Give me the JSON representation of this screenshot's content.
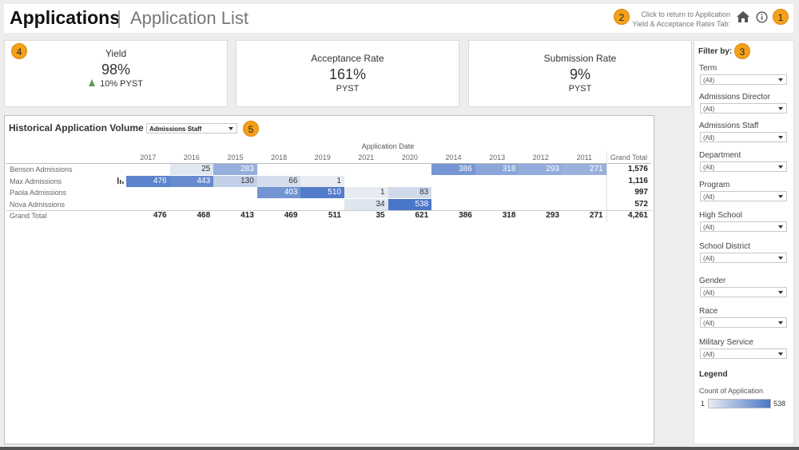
{
  "header": {
    "title": "Applications",
    "subtitle": "Application List",
    "return_link": [
      "Click to return to Application",
      "Yield & Acceptance Rates Tab:"
    ]
  },
  "badges": [
    "1",
    "2",
    "3",
    "4",
    "5"
  ],
  "kpis": [
    {
      "title": "Yield",
      "value": "98%",
      "change": "10% PYST"
    },
    {
      "title": "Acceptance Rate",
      "value": "161%",
      "change": "PYST"
    },
    {
      "title": "Submission Rate",
      "value": "9%",
      "change": "PYST"
    }
  ],
  "chart": {
    "title": "Historical Application Volume",
    "dropdown": "Admissions Staff",
    "column_header": "Application Date",
    "columns": [
      "2017",
      "2016",
      "2015",
      "2018",
      "2019",
      "2021",
      "2020",
      "2014",
      "2013",
      "2012",
      "2011",
      "Grand Total"
    ],
    "rows": [
      {
        "label": "Benson Admissions",
        "cells": [
          null,
          25,
          283,
          null,
          null,
          null,
          null,
          386,
          318,
          293,
          271
        ],
        "total": "1,576"
      },
      {
        "label": "Max Admissions",
        "cells": [
          476,
          443,
          130,
          66,
          1,
          null,
          null,
          null,
          null,
          null,
          null
        ],
        "total": "1,116"
      },
      {
        "label": "Paola Admissions",
        "cells": [
          null,
          null,
          null,
          403,
          510,
          1,
          83,
          null,
          null,
          null,
          null
        ],
        "total": "997"
      },
      {
        "label": "Nova Admissions",
        "cells": [
          null,
          null,
          null,
          null,
          null,
          34,
          538,
          null,
          null,
          null,
          null
        ],
        "total": "572"
      }
    ],
    "grand_total": {
      "label": "Grand Total",
      "cells": [
        476,
        468,
        413,
        469,
        511,
        35,
        621,
        386,
        318,
        293,
        271
      ],
      "total": "4,261"
    }
  },
  "filters": {
    "title": "Filter by:",
    "items": [
      {
        "label": "Term",
        "value": "(All)"
      },
      {
        "label": "Admissions Director",
        "value": "(All)"
      },
      {
        "label": "Admissions Staff",
        "value": "(All)"
      },
      {
        "label": "Department",
        "value": "(All)"
      },
      {
        "label": "Program",
        "value": "(All)"
      },
      {
        "label": "High School",
        "value": "(All)"
      },
      {
        "label": "School District",
        "value": "(All)"
      },
      {
        "label": "Gender",
        "value": "(All)"
      },
      {
        "label": "Race",
        "value": "(All)"
      },
      {
        "label": "Military Service",
        "value": "(All)"
      }
    ]
  },
  "legend": {
    "title": "Legend",
    "measure": "Count of Application",
    "min": 1,
    "max": 538
  }
}
